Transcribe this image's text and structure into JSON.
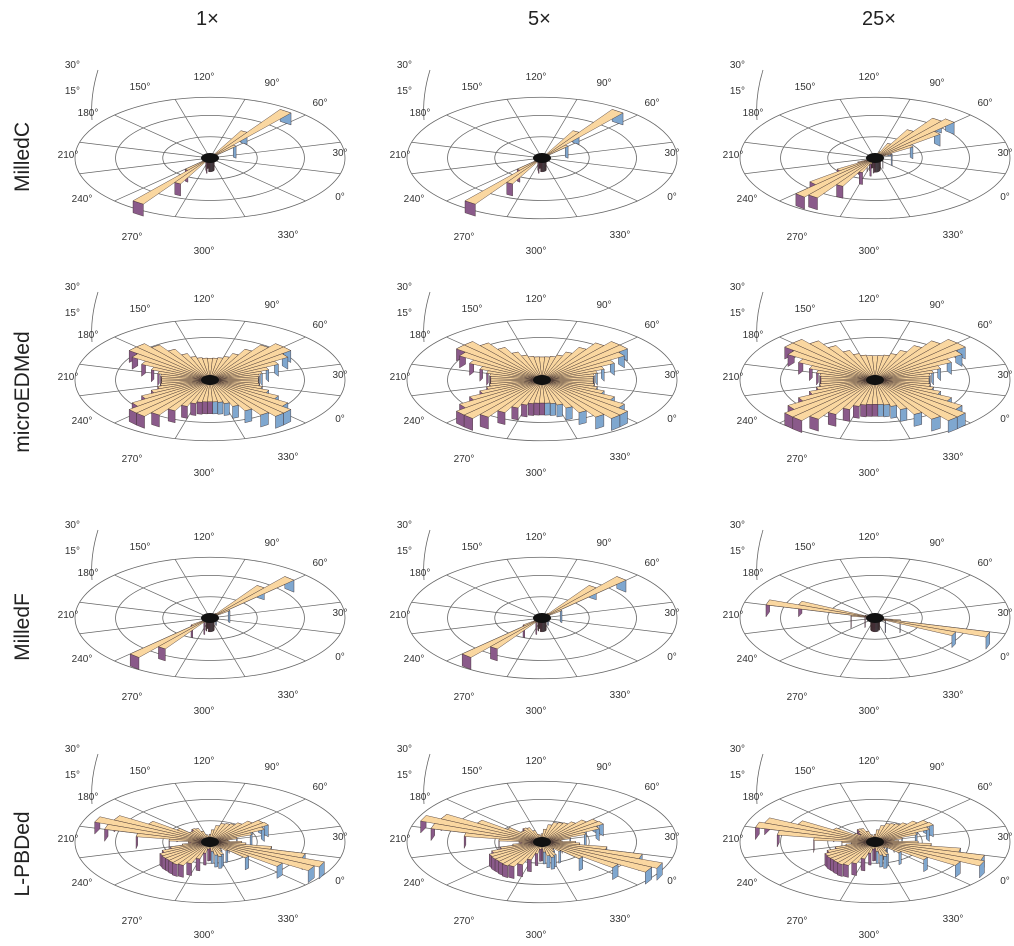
{
  "column_headers": [
    "1×",
    "5×",
    "25×"
  ],
  "row_labels": [
    "MilledC",
    "microEDMed",
    "MilledF",
    "L-PBDed"
  ],
  "colors": {
    "bar_top": "#fad7a0",
    "bar_side_blue": "#7fa7cf",
    "bar_side_purple": "#8a5a8a",
    "bar_edge": "#3a2a2a",
    "grid": "#666666"
  },
  "angle_labels": [
    "0°",
    "30°",
    "60°",
    "90°",
    "120°",
    "150°",
    "180°",
    "210°",
    "240°",
    "270°",
    "300°",
    "330°"
  ],
  "side_scale_labels": [
    "30°",
    "15°"
  ],
  "chart_data": [
    {
      "type": "rose",
      "row": "MilledC",
      "column": "1×",
      "shape": "narrow",
      "orientation_deg": 55,
      "scale": 1.0
    },
    {
      "type": "rose",
      "row": "MilledC",
      "column": "5×",
      "shape": "narrow",
      "orientation_deg": 55,
      "scale": 1.0
    },
    {
      "type": "rose",
      "row": "MilledC",
      "column": "25×",
      "shape": "fan",
      "orientation_deg": 50,
      "scale": 0.95
    },
    {
      "type": "rose",
      "row": "microEDMed",
      "column": "1×",
      "shape": "cross",
      "orientation_deg": 45,
      "scale": 0.85
    },
    {
      "type": "rose",
      "row": "microEDMed",
      "column": "5×",
      "shape": "cross",
      "orientation_deg": 45,
      "scale": 0.9
    },
    {
      "type": "rose",
      "row": "microEDMed",
      "column": "25×",
      "shape": "cross",
      "orientation_deg": 45,
      "scale": 0.95
    },
    {
      "type": "rose",
      "row": "MilledF",
      "column": "1×",
      "shape": "narrow",
      "orientation_deg": 50,
      "scale": 1.0
    },
    {
      "type": "rose",
      "row": "MilledF",
      "column": "5×",
      "shape": "narrow",
      "orientation_deg": 50,
      "scale": 1.0
    },
    {
      "type": "rose",
      "row": "MilledF",
      "column": "25×",
      "shape": "narrow",
      "orientation_deg": -20,
      "scale": 1.0
    },
    {
      "type": "rose",
      "row": "L-PBDed",
      "column": "1×",
      "shape": "broad",
      "orientation_deg": -25,
      "scale": 0.95
    },
    {
      "type": "rose",
      "row": "L-PBDed",
      "column": "5×",
      "shape": "broad",
      "orientation_deg": -25,
      "scale": 1.0
    },
    {
      "type": "rose",
      "row": "L-PBDed",
      "column": "25×",
      "shape": "broad",
      "orientation_deg": -20,
      "scale": 0.95
    }
  ]
}
